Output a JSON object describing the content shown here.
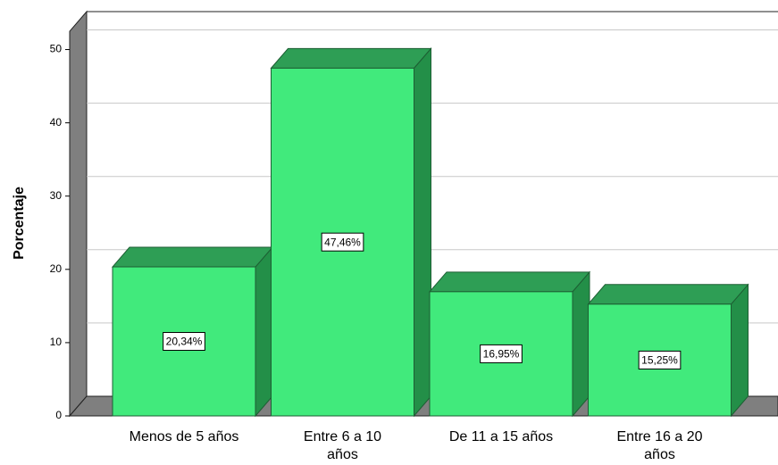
{
  "chart_data": {
    "type": "bar3d",
    "y_label": "Porcentaje",
    "categories": [
      "Menos de 5 años",
      "Entre 6 a 10 años",
      "De 11 a 15 años",
      "Entre 16 a 20 años"
    ],
    "values": [
      20.34,
      47.46,
      16.95,
      15.25
    ],
    "value_labels": [
      "20,34%",
      "47,46%",
      "16,95%",
      "15,25%"
    ],
    "color": "#41ea7c",
    "ylim": [
      0,
      52.5
    ],
    "yticks": [
      0,
      10,
      20,
      30,
      40,
      50
    ],
    "grid": true
  }
}
